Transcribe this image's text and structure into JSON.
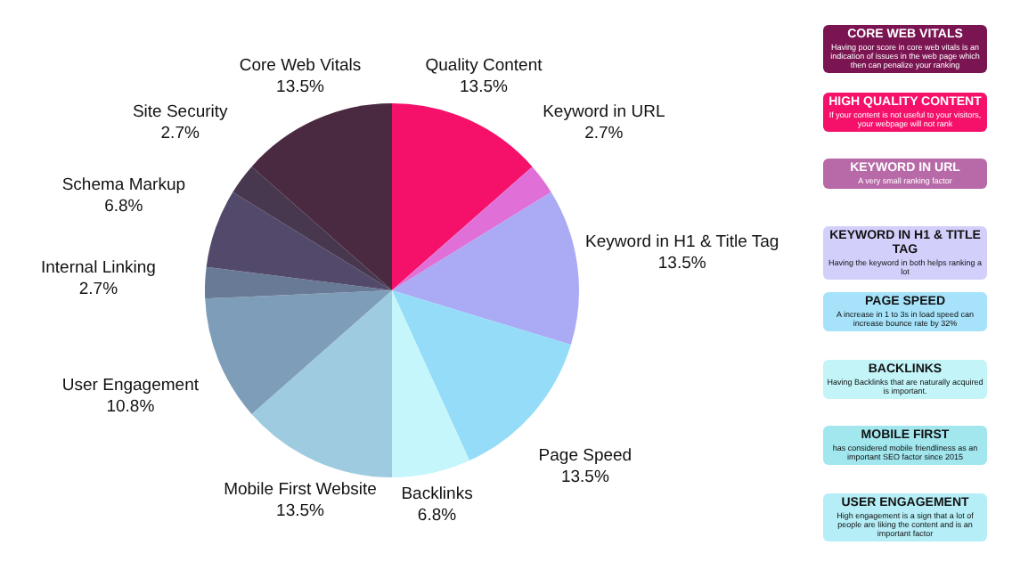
{
  "chart_data": [
    {
      "type": "pie",
      "categories": [
        "Quality Content",
        "Keyword in URL",
        "Keyword in H1 & Title Tag",
        "Page Speed",
        "Backlinks",
        "Mobile First Website",
        "User Engagement",
        "Internal Linking",
        "Schema Markup",
        "Site Security",
        "Core Web Vitals"
      ],
      "values": [
        13.5,
        2.7,
        13.5,
        13.5,
        6.8,
        13.5,
        10.8,
        2.7,
        6.8,
        2.7,
        13.5
      ],
      "value_labels": [
        "13.5%",
        "2.7%",
        "13.5%",
        "13.5%",
        "6.8%",
        "13.5%",
        "10.8%",
        "2.7%",
        "6.8%",
        "2.7%",
        "13.5%"
      ],
      "colors": [
        "#f5106a",
        "#e070d8",
        "#aaaaf5",
        "#94dcf8",
        "#c4f6fb",
        "#9ecbe0",
        "#7e9db8",
        "#687a95",
        "#534a6b",
        "#47374f",
        "#4a2a40"
      ],
      "legend": false
    },
    {
      "type": "other",
      "annotations": [
        "CORE WEB VITALS",
        "Having poor score in core web vitals is an indication of issues in the web page which then can penalize your ranking",
        "HIGH QUALITY CONTENT",
        "If your content is not useful to your visitors, your webpage will not rank",
        "KEYWORD IN URL",
        "A very small ranking factor",
        "KEYWORD IN H1 & TITLE TAG",
        "Having the keyword in both helps ranking a lot",
        "PAGE SPEED",
        "A increase in 1 to 3s in load speed can increase bounce rate by 32%",
        "BACKLINKS",
        "Having Backlinks that are naturally acquired is important.",
        "MOBILE FIRST",
        "has considered mobile friendliness as an important SEO factor since 2015",
        "USER ENGAGEMENT",
        "High engagement is a sign that a lot of people are liking the content and is an important factor"
      ]
    }
  ]
}
